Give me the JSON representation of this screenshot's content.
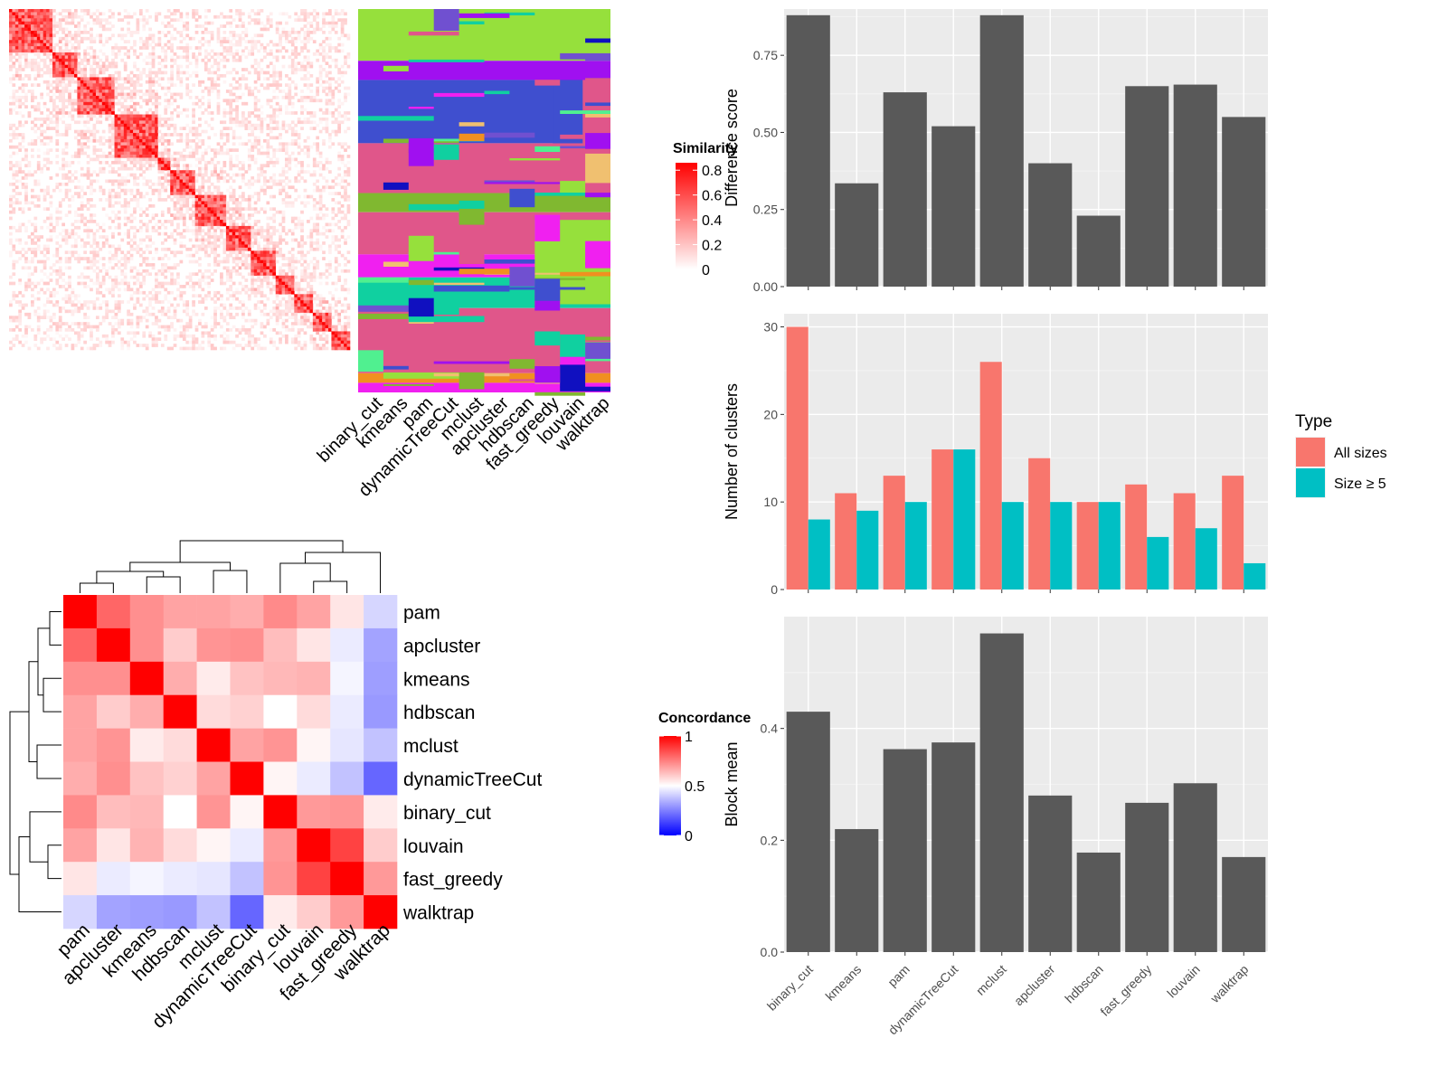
{
  "colors": {
    "panel_bg": "#ebebeb",
    "grid": "#ffffff",
    "bar_dark": "#595959",
    "all_sizes": "#f8766d",
    "size_ge5": "#00bfc4",
    "sim_high": "#ff0000",
    "conc_low": "#0000ff",
    "conc_mid": "#ffffff",
    "conc_high": "#ff0000"
  },
  "similarity_heatmap": {
    "legend_title": "Similarity",
    "legend_ticks": [
      "0.8",
      "0.6",
      "0.4",
      "0.2",
      "0"
    ],
    "legend_values": [
      0.8,
      0.6,
      0.4,
      0.2,
      0
    ],
    "method_labels": [
      "binary_cut",
      "kmeans",
      "pam",
      "dynamicTreeCut",
      "mclust",
      "apcluster",
      "hdbscan",
      "fast_greedy",
      "louvain",
      "walktrap"
    ]
  },
  "concordance_heatmap": {
    "legend_title": "Concordance",
    "legend_ticks": [
      "1",
      "0.5",
      "0"
    ],
    "legend_values": [
      1,
      0.5,
      0
    ],
    "methods": [
      "pam",
      "apcluster",
      "kmeans",
      "hdbscan",
      "mclust",
      "dynamicTreeCut",
      "binary_cut",
      "louvain",
      "fast_greedy",
      "walktrap"
    ]
  },
  "chart_data": [
    {
      "type": "bar",
      "categories": [
        "binary_cut",
        "kmeans",
        "pam",
        "dynamicTreeCut",
        "mclust",
        "apcluster",
        "hdbscan",
        "fast_greedy",
        "louvain",
        "walktrap"
      ],
      "values": [
        0.88,
        0.335,
        0.63,
        0.52,
        0.88,
        0.4,
        0.23,
        0.65,
        0.655,
        0.55
      ],
      "title": "",
      "xlabel": "",
      "ylabel": "Difference score",
      "ylim": [
        0,
        0.9
      ],
      "yticks": [
        0.0,
        0.25,
        0.5,
        0.75
      ],
      "ytick_labels": [
        "0.00",
        "0.25",
        "0.50",
        "0.75"
      ],
      "grid": true
    },
    {
      "type": "bar",
      "categories": [
        "binary_cut",
        "kmeans",
        "pam",
        "dynamicTreeCut",
        "mclust",
        "apcluster",
        "hdbscan",
        "fast_greedy",
        "louvain",
        "walktrap"
      ],
      "series": [
        {
          "name": "All sizes",
          "values": [
            30,
            11,
            13,
            16,
            26,
            15,
            10,
            12,
            11,
            13
          ]
        },
        {
          "name": "Size ≥ 5",
          "values": [
            8,
            9,
            10,
            16,
            10,
            10,
            10,
            6,
            7,
            3
          ]
        }
      ],
      "title": "",
      "xlabel": "",
      "ylabel": "Number of clusters",
      "ylim": [
        0,
        31.5
      ],
      "yticks": [
        0,
        10,
        20,
        30
      ],
      "ytick_labels": [
        "0",
        "10",
        "20",
        "30"
      ],
      "legend_title": "Type",
      "legend_position": "right",
      "grid": true
    },
    {
      "type": "bar",
      "categories": [
        "binary_cut",
        "kmeans",
        "pam",
        "dynamicTreeCut",
        "mclust",
        "apcluster",
        "hdbscan",
        "fast_greedy",
        "louvain",
        "walktrap"
      ],
      "values": [
        0.43,
        0.22,
        0.363,
        0.375,
        0.57,
        0.28,
        0.178,
        0.267,
        0.302,
        0.17
      ],
      "title": "",
      "xlabel": "",
      "ylabel": "Block mean",
      "ylim": [
        0,
        0.6
      ],
      "yticks": [
        0.0,
        0.2,
        0.4
      ],
      "ytick_labels": [
        "0.0",
        "0.2",
        "0.4"
      ],
      "grid": true
    },
    {
      "type": "heatmap",
      "rows": [
        "pam",
        "apcluster",
        "kmeans",
        "hdbscan",
        "mclust",
        "dynamicTreeCut",
        "binary_cut",
        "louvain",
        "fast_greedy",
        "walktrap"
      ],
      "columns": [
        "pam",
        "apcluster",
        "kmeans",
        "hdbscan",
        "mclust",
        "dynamicTreeCut",
        "binary_cut",
        "louvain",
        "fast_greedy",
        "walktrap"
      ],
      "values": [
        [
          1.0,
          0.8,
          0.72,
          0.68,
          0.68,
          0.66,
          0.73,
          0.68,
          0.55,
          0.42
        ],
        [
          0.8,
          1.0,
          0.72,
          0.6,
          0.71,
          0.72,
          0.63,
          0.55,
          0.46,
          0.32
        ],
        [
          0.72,
          0.72,
          1.0,
          0.66,
          0.54,
          0.62,
          0.64,
          0.65,
          0.48,
          0.31
        ],
        [
          0.68,
          0.6,
          0.66,
          1.0,
          0.57,
          0.59,
          0.5,
          0.57,
          0.46,
          0.3
        ],
        [
          0.68,
          0.71,
          0.54,
          0.57,
          1.0,
          0.68,
          0.71,
          0.52,
          0.45,
          0.38
        ],
        [
          0.66,
          0.72,
          0.62,
          0.59,
          0.68,
          1.0,
          0.52,
          0.46,
          0.38,
          0.2
        ],
        [
          0.73,
          0.63,
          0.64,
          0.5,
          0.71,
          0.52,
          1.0,
          0.7,
          0.71,
          0.54
        ],
        [
          0.68,
          0.55,
          0.65,
          0.57,
          0.52,
          0.46,
          0.7,
          1.0,
          0.87,
          0.6
        ],
        [
          0.55,
          0.46,
          0.48,
          0.46,
          0.45,
          0.38,
          0.71,
          0.87,
          1.0,
          0.7
        ],
        [
          0.42,
          0.32,
          0.31,
          0.3,
          0.38,
          0.2,
          0.54,
          0.6,
          0.7,
          1.0
        ]
      ]
    }
  ]
}
